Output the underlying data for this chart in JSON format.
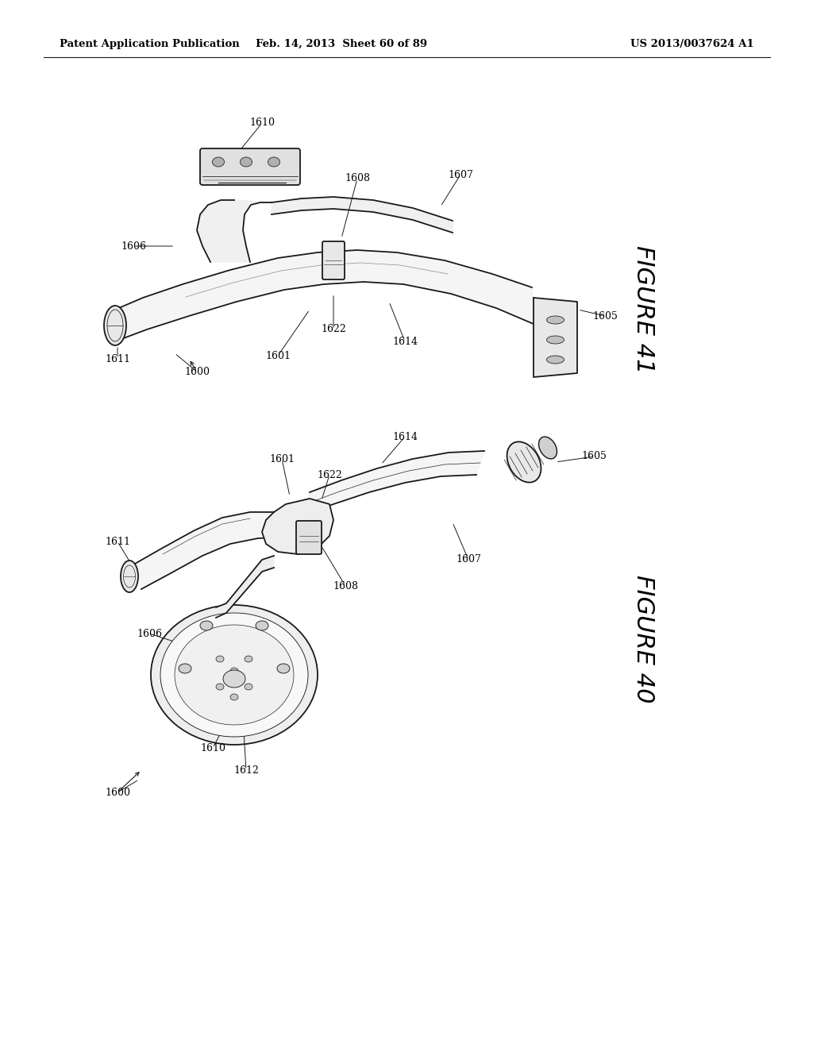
{
  "title_left": "Patent Application Publication",
  "title_center": "Feb. 14, 2013  Sheet 60 of 89",
  "title_right": "US 2013/0037624 A1",
  "figure41_label": "FIGURE 41",
  "figure40_label": "FIGURE 40",
  "bg_color": "#ffffff",
  "line_color": "#1a1a1a",
  "fig_width": 10.24,
  "fig_height": 13.2,
  "header_fontsize": 9.5,
  "ref_fontsize": 9,
  "figure_label_fontsize": 20
}
